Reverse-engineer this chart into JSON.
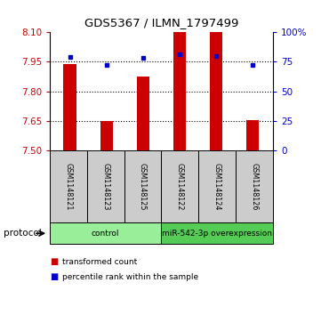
{
  "title": "GDS5367 / ILMN_1797499",
  "samples": [
    "GSM1148121",
    "GSM1148123",
    "GSM1148125",
    "GSM1148122",
    "GSM1148124",
    "GSM1148126"
  ],
  "bar_values": [
    7.94,
    7.65,
    7.875,
    8.1,
    8.1,
    7.655
  ],
  "dot_values": [
    79,
    72,
    78,
    81,
    80,
    72
  ],
  "bar_color": "#cc0000",
  "dot_color": "#0000cc",
  "ylim_left": [
    7.5,
    8.1
  ],
  "ylim_right": [
    0,
    100
  ],
  "yticks_left": [
    7.5,
    7.65,
    7.8,
    7.95,
    8.1
  ],
  "yticks_right": [
    0,
    25,
    50,
    75,
    100
  ],
  "ytick_labels_right": [
    "0",
    "25",
    "50",
    "75",
    "100%"
  ],
  "groups": [
    {
      "label": "control",
      "start": 0,
      "end": 3,
      "color": "#99ee99"
    },
    {
      "label": "miR-542-3p overexpression",
      "start": 3,
      "end": 6,
      "color": "#55cc55"
    }
  ],
  "legend_items": [
    {
      "label": "transformed count",
      "color": "#cc0000"
    },
    {
      "label": "percentile rank within the sample",
      "color": "#0000cc"
    }
  ],
  "protocol_label": "protocol",
  "sample_box_color": "#cccccc",
  "bar_width": 0.35
}
